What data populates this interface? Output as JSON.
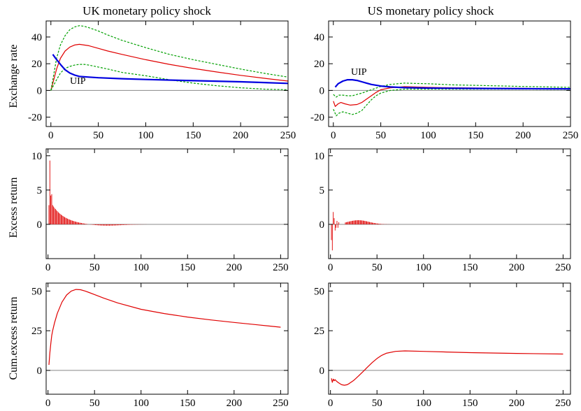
{
  "column_titles": [
    "UK monetary policy shock",
    "US monetary policy shock"
  ],
  "row_labels": [
    "Exchange rate",
    "Excess return",
    "Cum.excess return"
  ],
  "colors": {
    "response": "#e00000",
    "bands": "#00a000",
    "uip": "#0000e0",
    "zero_line": "#888888",
    "frame": "#000000"
  },
  "chart_data": [
    {
      "type": "line",
      "panel": "uk-exchange-rate",
      "title": "UK monetary policy shock",
      "ylabel": "Exchange rate",
      "xlim": [
        -5,
        250
      ],
      "ylim": [
        -27,
        52
      ],
      "xticks": [
        0,
        50,
        100,
        150,
        200,
        250
      ],
      "yticks": [
        -20,
        0,
        20,
        40
      ],
      "annotation": "UIP",
      "series": [
        {
          "role": "response",
          "x": [
            0,
            3,
            6,
            10,
            15,
            20,
            25,
            30,
            35,
            40,
            50,
            60,
            75,
            100,
            125,
            150,
            175,
            200,
            225,
            250
          ],
          "y": [
            0,
            8,
            16,
            24,
            29.5,
            32.5,
            34,
            34.5,
            34,
            33.5,
            31.5,
            29.5,
            27,
            23,
            19.5,
            16.5,
            13.8,
            11.3,
            9.1,
            7
          ]
        },
        {
          "role": "upper-band",
          "x": [
            0,
            3,
            6,
            10,
            15,
            20,
            25,
            30,
            35,
            40,
            50,
            60,
            75,
            100,
            125,
            150,
            175,
            200,
            225,
            250
          ],
          "y": [
            0,
            12,
            24,
            34,
            41,
            45.5,
            47.5,
            48.5,
            48,
            47,
            44.5,
            41.5,
            37.5,
            32,
            27,
            23,
            19.5,
            16,
            12.8,
            10
          ]
        },
        {
          "role": "lower-band",
          "x": [
            0,
            3,
            6,
            10,
            15,
            20,
            25,
            30,
            35,
            40,
            50,
            60,
            75,
            100,
            125,
            150,
            175,
            200,
            225,
            250
          ],
          "y": [
            0,
            4,
            8,
            13,
            16.5,
            18,
            19,
            19.5,
            19.5,
            19,
            17.5,
            16,
            13.5,
            11,
            8,
            5.5,
            3.5,
            2,
            1,
            0.5
          ]
        },
        {
          "role": "uip",
          "x": [
            2,
            5,
            10,
            15,
            20,
            25,
            30,
            40,
            50,
            75,
            100,
            150,
            200,
            250
          ],
          "y": [
            27,
            24,
            19.5,
            15.5,
            13,
            11.5,
            10.5,
            10,
            9.5,
            8.8,
            8.2,
            7.3,
            6.5,
            5.3
          ]
        }
      ]
    },
    {
      "type": "line",
      "panel": "us-exchange-rate",
      "title": "US monetary policy shock",
      "ylabel": "",
      "xlim": [
        -5,
        250
      ],
      "ylim": [
        -27,
        52
      ],
      "xticks": [
        0,
        50,
        100,
        150,
        200,
        250
      ],
      "yticks": [
        -20,
        0,
        20,
        40
      ],
      "annotation": "UIP",
      "series": [
        {
          "role": "response",
          "x": [
            0,
            2,
            5,
            8,
            12,
            18,
            25,
            30,
            35,
            40,
            45,
            50,
            60,
            75,
            100,
            125,
            150,
            200,
            250
          ],
          "y": [
            -8,
            -12,
            -10,
            -9,
            -10,
            -11,
            -10.5,
            -9,
            -6.5,
            -4,
            -1.5,
            0.5,
            2,
            2.8,
            2.3,
            2,
            1.8,
            1.5,
            1.3
          ]
        },
        {
          "role": "upper-band",
          "x": [
            0,
            3,
            6,
            10,
            15,
            20,
            25,
            30,
            40,
            50,
            60,
            75,
            90,
            100,
            125,
            150,
            200,
            250
          ],
          "y": [
            -3,
            -5,
            -3.5,
            -3.5,
            -4,
            -4,
            -3,
            -2,
            0.5,
            3,
            4.5,
            5.5,
            5.2,
            5,
            4.2,
            3.8,
            3,
            2.3
          ]
        },
        {
          "role": "lower-band",
          "x": [
            0,
            3,
            6,
            10,
            15,
            20,
            25,
            30,
            35,
            40,
            45,
            50,
            60,
            75,
            100,
            150,
            200,
            250
          ],
          "y": [
            -14,
            -19,
            -17,
            -16,
            -17,
            -18,
            -17,
            -15,
            -11,
            -7,
            -4,
            -2,
            0,
            1,
            1,
            1,
            1,
            0.8
          ]
        },
        {
          "role": "uip",
          "x": [
            2,
            5,
            10,
            15,
            20,
            25,
            30,
            35,
            40,
            50,
            60,
            75,
            100,
            150,
            200,
            250
          ],
          "y": [
            2.5,
            5,
            7,
            8,
            8,
            7.5,
            6.5,
            5.5,
            4.5,
            3.3,
            2.6,
            2.1,
            1.8,
            1.5,
            1.3,
            1.2
          ]
        }
      ]
    },
    {
      "type": "bar",
      "panel": "uk-excess-return",
      "ylabel": "Excess return",
      "xlim": [
        -2,
        258
      ],
      "ylim": [
        -5,
        11
      ],
      "xticks": [
        0,
        50,
        100,
        150,
        200,
        250
      ],
      "yticks": [
        0,
        5,
        10
      ],
      "values": {
        "spikes": [
          [
            2,
            9.3
          ],
          [
            3,
            4.2
          ],
          [
            4,
            4.4
          ]
        ],
        "decay_start": 2.8,
        "decay_rate": 0.075,
        "undershoot": -0.22,
        "undershoot_center": 60,
        "undershoot_width": 25,
        "n": 250
      }
    },
    {
      "type": "bar",
      "panel": "us-excess-return",
      "ylabel": "",
      "xlim": [
        -2,
        258
      ],
      "ylim": [
        -5,
        11
      ],
      "xticks": [
        0,
        50,
        100,
        150,
        200,
        250
      ],
      "yticks": [
        0,
        5,
        10
      ],
      "values": {
        "spikes": [
          [
            1,
            -2.3
          ],
          [
            2,
            -3.8
          ],
          [
            3,
            1.8
          ],
          [
            4,
            0.9
          ],
          [
            5,
            -0.9
          ],
          [
            6,
            -0.5
          ],
          [
            7,
            0.5
          ],
          [
            8,
            -0.5
          ],
          [
            9,
            0.3
          ]
        ],
        "hump_peak": 0.6,
        "hump_center": 30,
        "hump_width": 16,
        "hump_start": 16,
        "hump_end": 85,
        "n": 85
      }
    },
    {
      "type": "line",
      "panel": "uk-cum-excess-return",
      "ylabel": "Cum.excess return",
      "xlim": [
        -2,
        258
      ],
      "ylim": [
        -15,
        55
      ],
      "xticks": [
        0,
        50,
        100,
        150,
        200,
        250
      ],
      "yticks": [
        0,
        25,
        50
      ],
      "series": [
        {
          "role": "response",
          "x": [
            1,
            2,
            3,
            4,
            5,
            7,
            10,
            15,
            20,
            25,
            30,
            35,
            40,
            50,
            60,
            75,
            100,
            125,
            150,
            175,
            200,
            225,
            250
          ],
          "y": [
            3.5,
            11,
            17,
            22,
            25,
            30,
            36,
            43,
            47.5,
            50,
            51,
            50.8,
            50,
            47.8,
            45.5,
            42.5,
            38.5,
            35.8,
            33.6,
            31.8,
            30.2,
            28.7,
            27.2
          ]
        }
      ]
    },
    {
      "type": "line",
      "panel": "us-cum-excess-return",
      "ylabel": "",
      "xlim": [
        -2,
        258
      ],
      "ylim": [
        -15,
        55
      ],
      "xticks": [
        0,
        50,
        100,
        150,
        200,
        250
      ],
      "yticks": [
        0,
        25,
        50
      ],
      "series": [
        {
          "role": "response",
          "x": [
            1,
            2,
            3,
            4,
            5,
            6,
            8,
            10,
            12,
            15,
            18,
            20,
            25,
            30,
            35,
            40,
            45,
            50,
            55,
            60,
            70,
            80,
            100,
            125,
            150,
            200,
            250
          ],
          "y": [
            -5,
            -7.5,
            -5.5,
            -6.5,
            -5.8,
            -6.5,
            -7.5,
            -8.3,
            -9,
            -9.3,
            -9,
            -8.3,
            -6.3,
            -3.6,
            -0.8,
            2.2,
            5,
            7.5,
            9.5,
            10.8,
            12,
            12.3,
            12,
            11.6,
            11.2,
            10.7,
            10.3
          ]
        }
      ]
    }
  ]
}
